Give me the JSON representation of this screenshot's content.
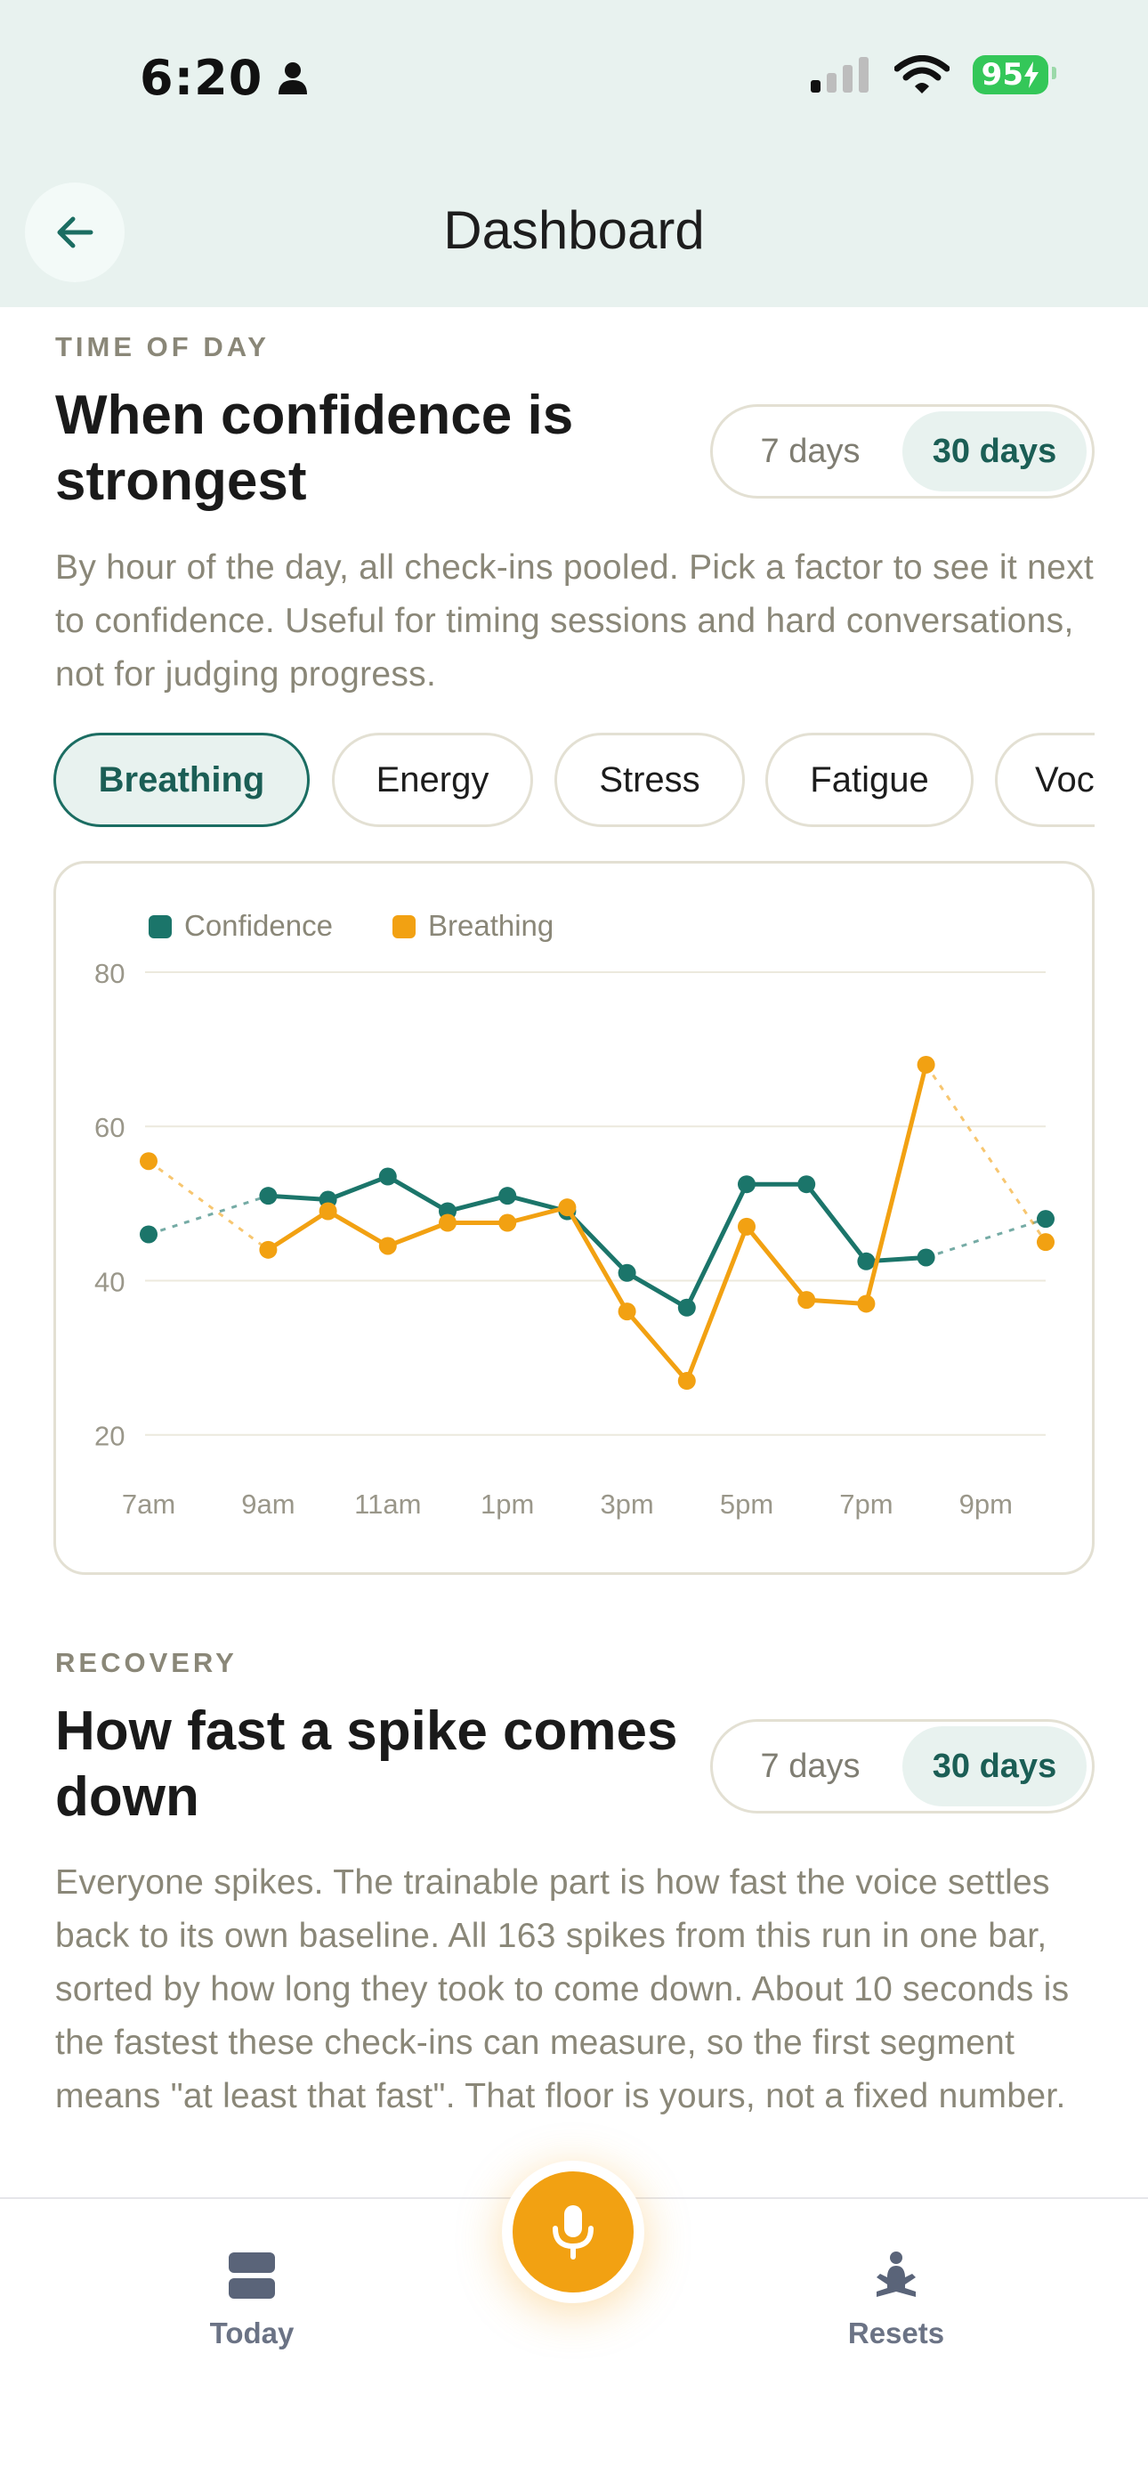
{
  "status": {
    "time": "6:20",
    "battery": "95"
  },
  "nav": {
    "title": "Dashboard"
  },
  "time_of_day": {
    "eyebrow": "TIME OF DAY",
    "title": "When confidence is strongest",
    "range_options": [
      "7 days",
      "30 days"
    ],
    "range_selected": "30 days",
    "description": "By hour of the day, all check-ins pooled. Pick a factor to see it next to confidence. Useful for timing sessions and hard conversations, not for judging progress.",
    "factors": [
      "Breathing",
      "Energy",
      "Stress",
      "Fatigue",
      "Voc"
    ],
    "factor_selected": "Breathing"
  },
  "chart_data": {
    "type": "line",
    "x": [
      "7am",
      "8am",
      "9am",
      "10am",
      "11am",
      "12pm",
      "1pm",
      "2pm",
      "3pm",
      "4pm",
      "5pm",
      "6pm",
      "7pm",
      "8pm",
      "9pm",
      "10pm"
    ],
    "x_tick_labels": [
      "7am",
      "9am",
      "11am",
      "1pm",
      "3pm",
      "5pm",
      "7pm",
      "9pm"
    ],
    "y_ticks": [
      20,
      40,
      60,
      80
    ],
    "ylim": [
      15,
      80
    ],
    "grid": true,
    "legend_position": "top-left",
    "series": [
      {
        "name": "Confidence",
        "color": "#1b756a",
        "values": [
          46,
          null,
          51,
          50.5,
          53.5,
          49,
          51,
          49,
          41,
          36.5,
          52.5,
          52.5,
          42.5,
          43,
          null,
          48
        ]
      },
      {
        "name": "Breathing",
        "color": "#f2a112",
        "values": [
          55.5,
          null,
          44,
          49,
          44.5,
          47.5,
          47.5,
          49.5,
          36,
          27,
          47,
          37.5,
          37,
          68,
          null,
          45
        ]
      }
    ]
  },
  "recovery": {
    "eyebrow": "RECOVERY",
    "title": "How fast a spike comes down",
    "range_options": [
      "7 days",
      "30 days"
    ],
    "range_selected": "30 days",
    "description": "Everyone spikes. The trainable part is how fast the voice settles back to its own baseline. All 163 spikes from this run in one bar, sorted by how long they took to come down. About 10 seconds is the fastest these check-ins can measure, so the first segment means \"at least that fast\". That floor is yours, not a fixed number."
  },
  "tabbar": {
    "today": "Today",
    "resets": "Resets"
  },
  "colors": {
    "accent": "#1b756a",
    "orange": "#f2a112",
    "header_bg": "#e8f2ef"
  }
}
